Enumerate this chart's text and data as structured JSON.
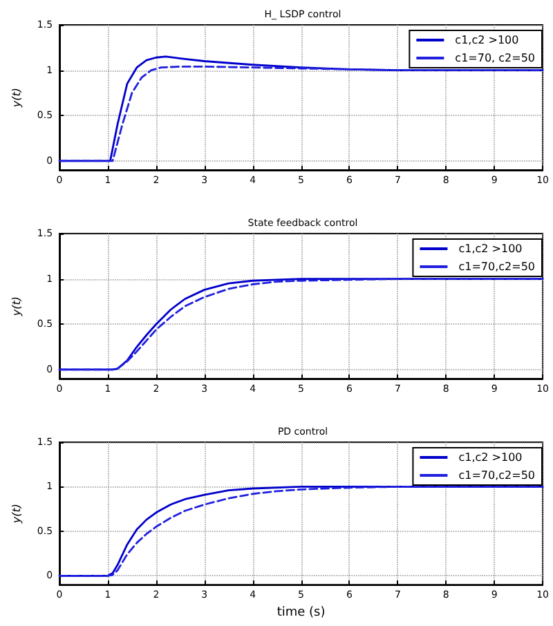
{
  "chart_data": [
    {
      "type": "line",
      "title": "H_ LSDP control",
      "ylabel": "y(t)",
      "xlim": [
        0,
        10
      ],
      "ylim": [
        -0.1,
        1.5
      ],
      "xticks": [
        0,
        1,
        2,
        3,
        4,
        5,
        6,
        7,
        8,
        9,
        10
      ],
      "yticks": [
        0,
        0.5,
        1,
        1.5
      ],
      "grid": true,
      "legend": "top right",
      "marker": "none",
      "series": [
        {
          "name": "c1,c2 >100",
          "color": "#0000cc",
          "line_style": "solid",
          "x": [
            0,
            1.05,
            1.2,
            1.4,
            1.6,
            1.8,
            2.0,
            2.2,
            2.5,
            3,
            4,
            5,
            6,
            7,
            10
          ],
          "values": [
            0,
            0,
            0.4,
            0.85,
            1.03,
            1.11,
            1.14,
            1.15,
            1.13,
            1.1,
            1.06,
            1.03,
            1.01,
            1.0,
            1.0
          ]
        },
        {
          "name": "c1=70, c2=50",
          "color": "#1f1fe0",
          "line_style": "dashed",
          "x": [
            0,
            1.1,
            1.3,
            1.5,
            1.7,
            1.9,
            2.1,
            2.5,
            3,
            4,
            5,
            6,
            7,
            10
          ],
          "values": [
            0,
            0,
            0.4,
            0.75,
            0.92,
            1.0,
            1.03,
            1.04,
            1.04,
            1.03,
            1.02,
            1.01,
            1.0,
            1.0
          ]
        }
      ]
    },
    {
      "type": "line",
      "title": "State feedback control",
      "ylabel": "y(t)",
      "xlim": [
        0,
        10
      ],
      "ylim": [
        -0.1,
        1.5
      ],
      "xticks": [
        0,
        1,
        2,
        3,
        4,
        5,
        6,
        7,
        8,
        9,
        10
      ],
      "yticks": [
        0,
        0.5,
        1,
        1.5
      ],
      "grid": true,
      "legend": "top right",
      "marker": "none",
      "series": [
        {
          "name": "c1,c2 >100",
          "color": "#0000cc",
          "line_style": "solid",
          "x": [
            0,
            1.1,
            1.2,
            1.4,
            1.6,
            1.8,
            2,
            2.3,
            2.6,
            3,
            3.5,
            4,
            4.5,
            5,
            10
          ],
          "values": [
            0,
            0,
            0.01,
            0.1,
            0.25,
            0.38,
            0.5,
            0.66,
            0.78,
            0.88,
            0.95,
            0.98,
            0.99,
            1,
            1
          ]
        },
        {
          "name": "c1=70,c2=50",
          "color": "#1f1fe0",
          "line_style": "dashed",
          "x": [
            0,
            1.1,
            1.2,
            1.4,
            1.6,
            1.8,
            2,
            2.3,
            2.6,
            3,
            3.5,
            4,
            4.5,
            5,
            6,
            7,
            10
          ],
          "values": [
            0,
            0,
            0.01,
            0.09,
            0.2,
            0.32,
            0.44,
            0.58,
            0.7,
            0.8,
            0.89,
            0.94,
            0.97,
            0.98,
            0.99,
            1,
            1
          ]
        }
      ]
    },
    {
      "type": "line",
      "title": "PD control",
      "xlabel": "time (s)",
      "ylabel": "y(t)",
      "xlim": [
        0,
        10
      ],
      "ylim": [
        -0.1,
        1.5
      ],
      "xticks": [
        0,
        1,
        2,
        3,
        4,
        5,
        6,
        7,
        8,
        9,
        10
      ],
      "yticks": [
        0,
        0.5,
        1,
        1.5
      ],
      "grid": true,
      "legend": "top right",
      "marker": "none",
      "series": [
        {
          "name": "c1,c2 >100",
          "color": "#0000cc",
          "line_style": "solid",
          "x": [
            0,
            1.0,
            1.1,
            1.2,
            1.4,
            1.6,
            1.8,
            2,
            2.3,
            2.6,
            3,
            3.5,
            4,
            5,
            10
          ],
          "values": [
            0,
            0,
            0.03,
            0.12,
            0.35,
            0.52,
            0.63,
            0.71,
            0.8,
            0.86,
            0.91,
            0.96,
            0.98,
            1,
            1
          ]
        },
        {
          "name": "c1=70,c2=50",
          "color": "#1f1fe0",
          "line_style": "dashed",
          "x": [
            0,
            1.0,
            1.1,
            1.2,
            1.4,
            1.6,
            1.8,
            2,
            2.3,
            2.6,
            3,
            3.5,
            4,
            4.5,
            5,
            6,
            7,
            10
          ],
          "values": [
            0,
            0,
            0.01,
            0.06,
            0.24,
            0.37,
            0.47,
            0.55,
            0.65,
            0.73,
            0.8,
            0.87,
            0.92,
            0.95,
            0.97,
            0.99,
            1,
            1
          ]
        }
      ]
    }
  ]
}
